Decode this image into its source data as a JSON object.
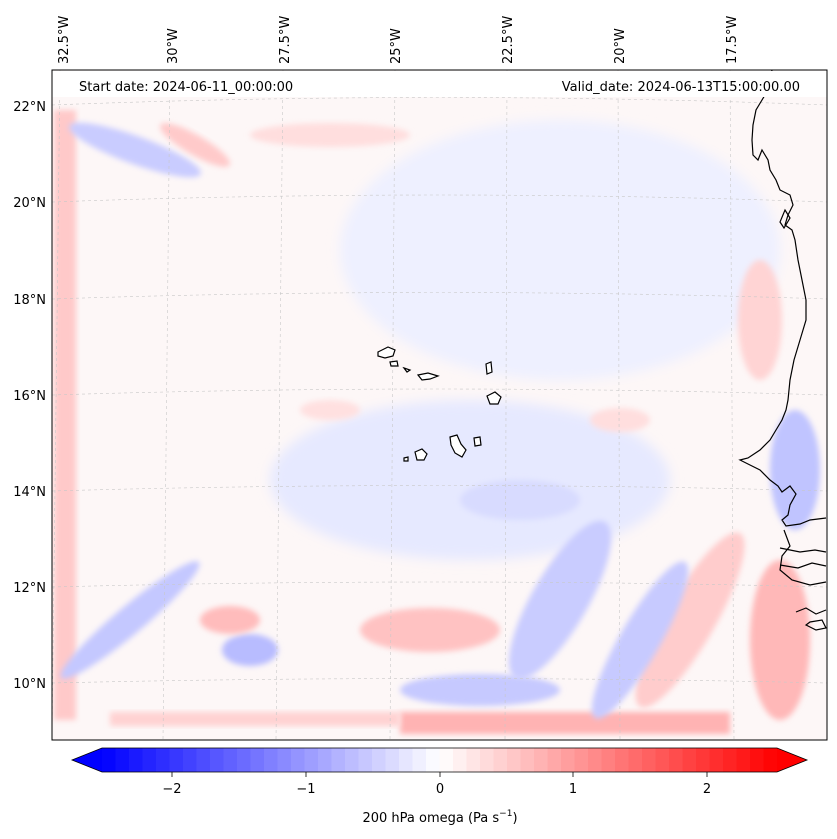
{
  "map": {
    "start_label": "Start date: 2024-06-11_00:00:00",
    "valid_label": "Valid_date: 2024-06-13T15:00:00.00",
    "lon_labels": [
      "32.5°W",
      "30°W",
      "27.5°W",
      "25°W",
      "22.5°W",
      "20°W",
      "17.5°W"
    ],
    "lat_labels": [
      "22°N",
      "20°N",
      "18°N",
      "16°N",
      "14°N",
      "12°N",
      "10°N"
    ]
  },
  "colorbar": {
    "ticks": [
      "−2",
      "−1",
      "0",
      "1",
      "2"
    ],
    "label": "200 hPa omega (Pa s",
    "label_exp": "−1",
    "label_close": ")",
    "min_color": "#0000ff",
    "max_color": "#ff0000",
    "neutral_color": "#ffffff"
  },
  "colors": {
    "coast": "#000000",
    "grid": "#c8c8c8"
  }
}
